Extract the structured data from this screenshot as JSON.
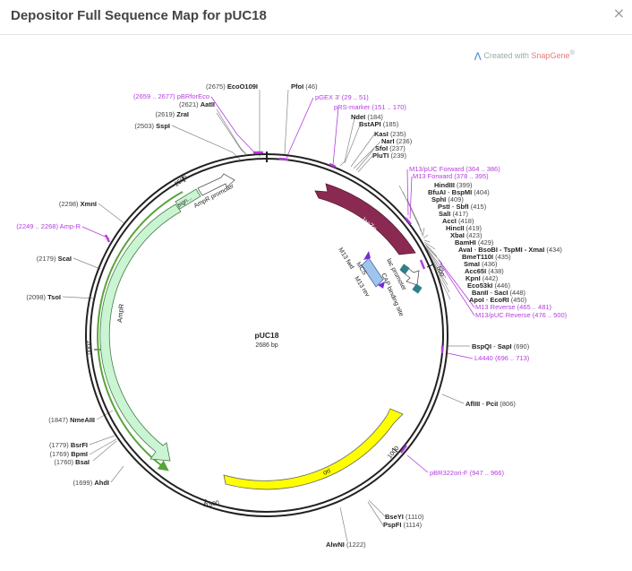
{
  "dialog": {
    "title": "Depositor Full Sequence Map for pUC18",
    "close_glyph": "×"
  },
  "credit": {
    "prefix": "Created with ",
    "brand": "SnapGene",
    "mark": "®",
    "logo_icon": "snapgene-logo-icon"
  },
  "plasmid": {
    "name": "pUC18",
    "length_label": "2686 bp",
    "ticks": [
      "500",
      "1000",
      "1500",
      "2000",
      "2500"
    ]
  },
  "features": {
    "lacZa": "lacZα",
    "ampr": "AmpR",
    "ampr_promoter": "AmpR promoter",
    "signal": "sign...",
    "ori": "ori",
    "mcs": "MCS",
    "lac_promoter": "lac promoter",
    "cap_site": "CAP binding site",
    "m13_fwd": "M13 fwd",
    "m13_rev": "M13 rev"
  },
  "sites": [
    {
      "pos": "(2675)",
      "name": "EcoO109I",
      "sep": "",
      "name2": "",
      "pos2": ""
    },
    {
      "pos": "(2621)",
      "name": "AatII",
      "sep": "",
      "name2": "",
      "pos2": ""
    },
    {
      "pos": "(2619)",
      "name": "ZraI",
      "sep": "",
      "name2": "",
      "pos2": ""
    },
    {
      "pos": "(2503)",
      "name": "SspI",
      "sep": "",
      "name2": "",
      "pos2": ""
    },
    {
      "pos": "(2298)",
      "name": "XmnI",
      "sep": "",
      "name2": "",
      "pos2": ""
    },
    {
      "pos": "(2179)",
      "name": "ScaI",
      "sep": "",
      "name2": "",
      "pos2": ""
    },
    {
      "pos": "(2098)",
      "name": "TsoI",
      "sep": "",
      "name2": "",
      "pos2": ""
    },
    {
      "pos": "(1847)",
      "name": "NmeAIII",
      "sep": "",
      "name2": "",
      "pos2": ""
    },
    {
      "pos": "(1779)",
      "name": "BsrFI",
      "sep": "",
      "name2": "",
      "pos2": ""
    },
    {
      "pos": "(1769)",
      "name": "BpmI",
      "sep": "",
      "name2": "",
      "pos2": ""
    },
    {
      "pos": "(1760)",
      "name": "BsaI",
      "sep": "",
      "name2": "",
      "pos2": ""
    },
    {
      "pos": "(1699)",
      "name": "AhdI",
      "sep": "",
      "name2": "",
      "pos2": ""
    },
    {
      "pos": "",
      "name": "PfoI",
      "sep": "",
      "name2": "",
      "pos2": "(46)"
    },
    {
      "pos": "",
      "name": "NdeI",
      "sep": "",
      "name2": "",
      "pos2": "(184)"
    },
    {
      "pos": "",
      "name": "BstAPI",
      "sep": "",
      "name2": "",
      "pos2": "(185)"
    },
    {
      "pos": "",
      "name": "KasI",
      "sep": "",
      "name2": "",
      "pos2": "(235)"
    },
    {
      "pos": "",
      "name": "NarI",
      "sep": "",
      "name2": "",
      "pos2": "(236)"
    },
    {
      "pos": "",
      "name": "SfoI",
      "sep": "",
      "name2": "",
      "pos2": "(237)"
    },
    {
      "pos": "",
      "name": "PluTI",
      "sep": "",
      "name2": "",
      "pos2": "(239)"
    },
    {
      "pos": "",
      "name": "HindIII",
      "sep": "",
      "name2": "",
      "pos2": "(399)"
    },
    {
      "pos": "",
      "name": "BfuAI",
      "sep": " - ",
      "name2": "BspMI",
      "pos2": "(404)"
    },
    {
      "pos": "",
      "name": "SphI",
      "sep": "",
      "name2": "",
      "pos2": "(409)"
    },
    {
      "pos": "",
      "name": "PstI",
      "sep": " - ",
      "name2": "SbfI",
      "pos2": "(415)"
    },
    {
      "pos": "",
      "name": "SalI",
      "sep": "",
      "name2": "",
      "pos2": "(417)"
    },
    {
      "pos": "",
      "name": "AccI",
      "sep": "",
      "name2": "",
      "pos2": "(418)"
    },
    {
      "pos": "",
      "name": "HincII",
      "sep": "",
      "name2": "",
      "pos2": "(419)"
    },
    {
      "pos": "",
      "name": "XbaI",
      "sep": "",
      "name2": "",
      "pos2": "(423)"
    },
    {
      "pos": "",
      "name": "BamHI",
      "sep": "",
      "name2": "",
      "pos2": "(429)"
    },
    {
      "pos": "",
      "name": "AvaI",
      "sep": " - ",
      "name2": "BsoBI - TspMI - XmaI",
      "pos2": "(434)"
    },
    {
      "pos": "",
      "name": "BmeT110I",
      "sep": "",
      "name2": "",
      "pos2": "(435)"
    },
    {
      "pos": "",
      "name": "SmaI",
      "sep": "",
      "name2": "",
      "pos2": "(436)"
    },
    {
      "pos": "",
      "name": "Acc65I",
      "sep": "",
      "name2": "",
      "pos2": "(438)"
    },
    {
      "pos": "",
      "name": "KpnI",
      "sep": "",
      "name2": "",
      "pos2": "(442)"
    },
    {
      "pos": "",
      "name": "Eco53kI",
      "sep": "",
      "name2": "",
      "pos2": "(446)"
    },
    {
      "pos": "",
      "name": "BanII",
      "sep": " - ",
      "name2": "SacI",
      "pos2": "(448)"
    },
    {
      "pos": "",
      "name": "ApoI",
      "sep": " - ",
      "name2": "EcoRI",
      "pos2": "(450)"
    },
    {
      "pos": "",
      "name": "BspQI",
      "sep": " - ",
      "name2": "SapI",
      "pos2": "(690)"
    },
    {
      "pos": "",
      "name": "AflIII",
      "sep": " - ",
      "name2": "PciI",
      "pos2": "(806)"
    },
    {
      "pos": "",
      "name": "BseYI",
      "sep": "",
      "name2": "",
      "pos2": "(1110)"
    },
    {
      "pos": "",
      "name": "PspFI",
      "sep": "",
      "name2": "",
      "pos2": "(1114)"
    },
    {
      "pos": "",
      "name": "AlwNI",
      "sep": "",
      "name2": "",
      "pos2": "(1222)"
    }
  ],
  "primers": [
    {
      "text": "(2659 .. 2677)  pBRforEco"
    },
    {
      "text": "(2249 .. 2268)  Amp-R"
    },
    {
      "text": "pGEX 3'  (29 .. 51)"
    },
    {
      "text": "pRS-marker  (151 .. 170)"
    },
    {
      "text": "M13/pUC Forward  (364 .. 386)"
    },
    {
      "text": "M13 Forward  (378 .. 395)"
    },
    {
      "text": "M13 Reverse  (465 .. 481)"
    },
    {
      "text": "M13/pUC Reverse  (476 .. 500)"
    },
    {
      "text": "L4440  (696 .. 713)"
    },
    {
      "text": "pBR322ori-F  (947 .. 966)"
    }
  ],
  "colors": {
    "backbone": "#222222",
    "lacz": "#8a2a52",
    "ampr_fill": "#c9f5d2",
    "ampr_stroke": "#4a7a4a",
    "green_line": "#58a43a",
    "ori": "#ffff00",
    "primer": "#b53be0",
    "mcs": "#9fc4f0",
    "lac_promoter": "#ffffff",
    "cap": "#2f7f8a",
    "m13_arrow": "#7a2ad8"
  }
}
